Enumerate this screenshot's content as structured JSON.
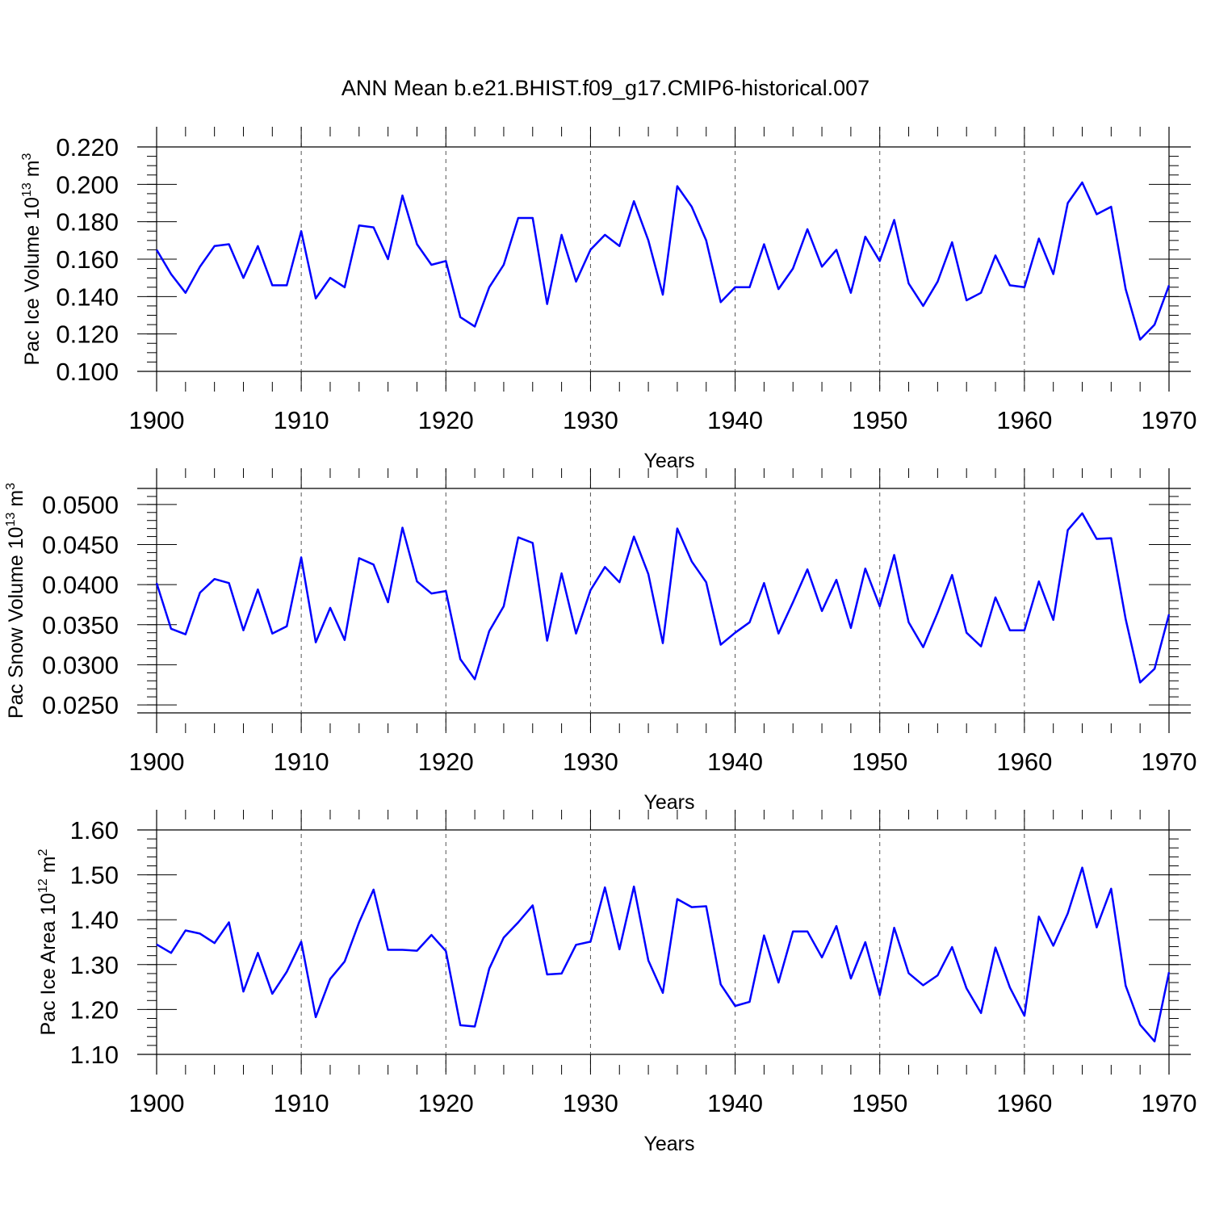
{
  "title": "ANN Mean b.e21.BHIST.f09_g17.CMIP6-historical.007",
  "line_color": "#0000ff",
  "chart_data": [
    {
      "type": "line",
      "ylabel_main": "Pac Ice Volume 10",
      "ylabel_exp": "13",
      "ylabel_unit": " m",
      "ylabel_unit_exp": "3",
      "xlabel": "Years",
      "xlim": [
        1900,
        1970
      ],
      "ylim": [
        0.1,
        0.22
      ],
      "yticks": [
        0.1,
        0.12,
        0.14,
        0.16,
        0.18,
        0.2,
        0.22
      ],
      "ytick_labels": [
        "0.100",
        "0.120",
        "0.140",
        "0.160",
        "0.180",
        "0.200",
        "0.220"
      ],
      "yminor": 0.005,
      "xticks": [
        1900,
        1910,
        1920,
        1930,
        1940,
        1950,
        1960,
        1970
      ],
      "xtick_labels": [
        "1900",
        "1910",
        "1920",
        "1930",
        "1940",
        "1950",
        "1960",
        "1970"
      ],
      "x_start": 1900,
      "values": [
        0.165,
        0.152,
        0.142,
        0.156,
        0.167,
        0.168,
        0.15,
        0.167,
        0.146,
        0.146,
        0.175,
        0.139,
        0.15,
        0.145,
        0.178,
        0.177,
        0.16,
        0.194,
        0.168,
        0.157,
        0.159,
        0.129,
        0.124,
        0.145,
        0.157,
        0.182,
        0.182,
        0.136,
        0.173,
        0.148,
        0.165,
        0.173,
        0.167,
        0.191,
        0.17,
        0.141,
        0.199,
        0.188,
        0.17,
        0.137,
        0.145,
        0.145,
        0.168,
        0.144,
        0.155,
        0.176,
        0.156,
        0.165,
        0.142,
        0.172,
        0.159,
        0.181,
        0.147,
        0.135,
        0.148,
        0.169,
        0.138,
        0.142,
        0.162,
        0.146,
        0.145,
        0.171,
        0.152,
        0.19,
        0.201,
        0.184,
        0.188,
        0.144,
        0.117,
        0.125,
        0.146
      ]
    },
    {
      "type": "line",
      "ylabel_main": "Pac Snow Volume 10",
      "ylabel_exp": "13",
      "ylabel_unit": " m",
      "ylabel_unit_exp": "3",
      "xlabel": "Years",
      "xlim": [
        1900,
        1970
      ],
      "ylim": [
        0.024,
        0.052
      ],
      "yticks": [
        0.025,
        0.03,
        0.035,
        0.04,
        0.045,
        0.05
      ],
      "ytick_labels": [
        "0.0250",
        "0.0300",
        "0.0350",
        "0.0400",
        "0.0450",
        "0.0500"
      ],
      "yminor": 0.001,
      "xticks": [
        1900,
        1910,
        1920,
        1930,
        1940,
        1950,
        1960,
        1970
      ],
      "xtick_labels": [
        "1900",
        "1910",
        "1920",
        "1930",
        "1940",
        "1950",
        "1960",
        "1970"
      ],
      "x_start": 1900,
      "values": [
        0.0402,
        0.0345,
        0.0338,
        0.039,
        0.0407,
        0.0402,
        0.0343,
        0.0394,
        0.0339,
        0.0348,
        0.0434,
        0.0328,
        0.0371,
        0.0331,
        0.0433,
        0.0425,
        0.0378,
        0.0471,
        0.0404,
        0.0389,
        0.0392,
        0.0307,
        0.0282,
        0.0342,
        0.0373,
        0.0459,
        0.0452,
        0.033,
        0.0414,
        0.0339,
        0.0393,
        0.0422,
        0.0403,
        0.046,
        0.0413,
        0.0327,
        0.047,
        0.0429,
        0.0403,
        0.0325,
        0.034,
        0.0353,
        0.0402,
        0.0339,
        0.0378,
        0.0419,
        0.0367,
        0.0406,
        0.0346,
        0.042,
        0.0373,
        0.0437,
        0.0353,
        0.0322,
        0.0365,
        0.0412,
        0.034,
        0.0323,
        0.0384,
        0.0343,
        0.0343,
        0.0404,
        0.0356,
        0.0468,
        0.0489,
        0.0457,
        0.0458,
        0.0357,
        0.0278,
        0.0295,
        0.0363
      ]
    },
    {
      "type": "line",
      "ylabel_main": "Pac Ice Area 10",
      "ylabel_exp": "12",
      "ylabel_unit": " m",
      "ylabel_unit_exp": "2",
      "xlabel": "Years",
      "xlim": [
        1900,
        1970
      ],
      "ylim": [
        1.1,
        1.6
      ],
      "yticks": [
        1.1,
        1.2,
        1.3,
        1.4,
        1.5,
        1.6
      ],
      "ytick_labels": [
        "1.10",
        "1.20",
        "1.30",
        "1.40",
        "1.50",
        "1.60"
      ],
      "yminor": 0.02,
      "xticks": [
        1900,
        1910,
        1920,
        1930,
        1940,
        1950,
        1960,
        1970
      ],
      "xtick_labels": [
        "1900",
        "1910",
        "1920",
        "1930",
        "1940",
        "1950",
        "1960",
        "1970"
      ],
      "x_start": 1900,
      "values": [
        1.345,
        1.326,
        1.376,
        1.369,
        1.348,
        1.394,
        1.24,
        1.326,
        1.235,
        1.284,
        1.351,
        1.183,
        1.268,
        1.307,
        1.394,
        1.467,
        1.333,
        1.333,
        1.331,
        1.366,
        1.33,
        1.165,
        1.162,
        1.291,
        1.36,
        1.394,
        1.432,
        1.278,
        1.28,
        1.344,
        1.351,
        1.472,
        1.334,
        1.474,
        1.309,
        1.237,
        1.446,
        1.428,
        1.43,
        1.256,
        1.208,
        1.217,
        1.365,
        1.26,
        1.374,
        1.374,
        1.316,
        1.386,
        1.269,
        1.35,
        1.232,
        1.382,
        1.281,
        1.254,
        1.276,
        1.339,
        1.247,
        1.192,
        1.338,
        1.249,
        1.186,
        1.407,
        1.342,
        1.414,
        1.516,
        1.383,
        1.469,
        1.253,
        1.166,
        1.129,
        1.283
      ]
    }
  ]
}
